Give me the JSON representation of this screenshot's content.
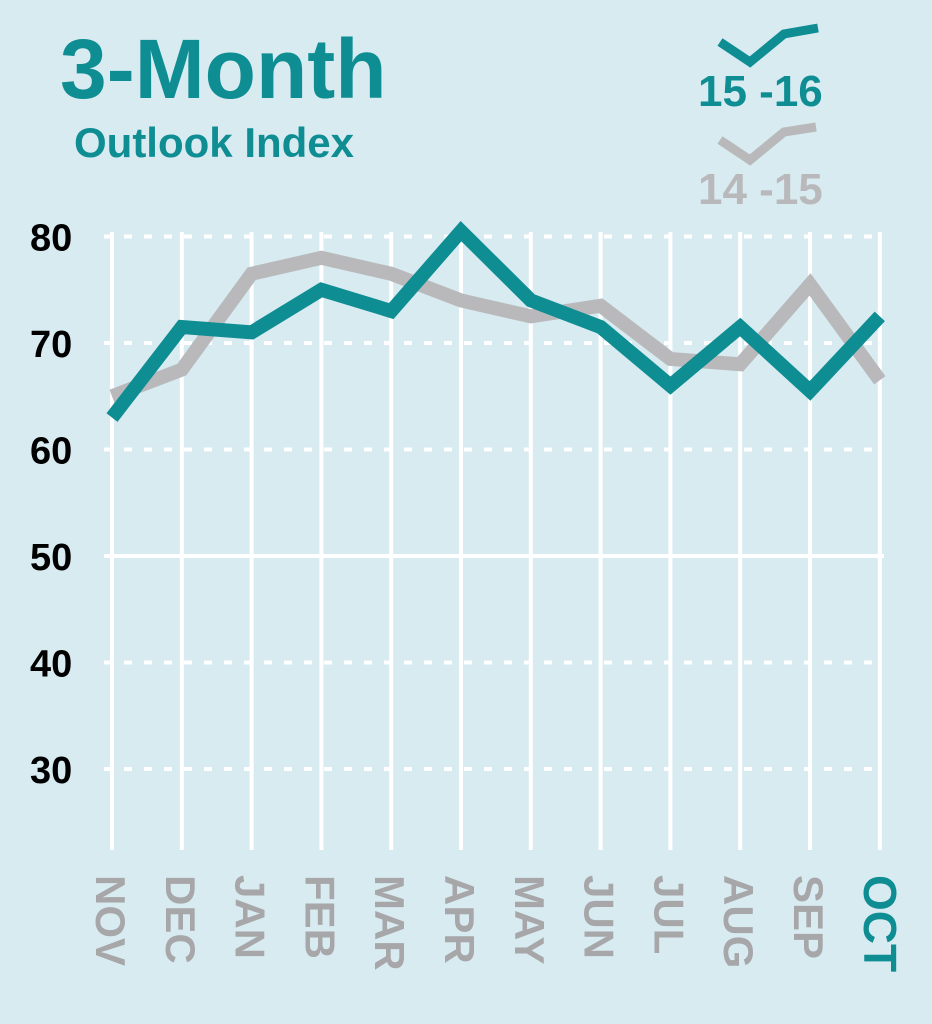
{
  "colors": {
    "background": "#d7ebf1",
    "current_series": "#0e8d93",
    "previous_series": "#b9b9bb",
    "grid": "#ffffff",
    "axis_text": "#000000",
    "month_text": "#a7a7a9"
  },
  "chart_data": {
    "type": "line",
    "title": "3-Month",
    "subtitle": "Outlook Index",
    "categories": [
      "NOV",
      "DEC",
      "JAN",
      "FEB",
      "MAR",
      "APR",
      "MAY",
      "JUN",
      "JUL",
      "AUG",
      "SEP",
      "OCT"
    ],
    "highlight_category": "OCT",
    "y_ticks": [
      30,
      40,
      50,
      60,
      70,
      80
    ],
    "ylim": [
      24,
      82
    ],
    "grid": true,
    "legend_position": "top-right",
    "series": [
      {
        "name": "14 -15",
        "values": [
          65,
          67.5,
          76.5,
          78,
          76.5,
          74,
          72.5,
          73.5,
          68.5,
          68,
          75.5,
          66.5
        ]
      },
      {
        "name": "15 -16",
        "values": [
          63,
          71.5,
          71,
          75,
          73,
          80.5,
          74,
          71.5,
          66,
          71.5,
          65.5,
          72.5
        ]
      }
    ]
  }
}
